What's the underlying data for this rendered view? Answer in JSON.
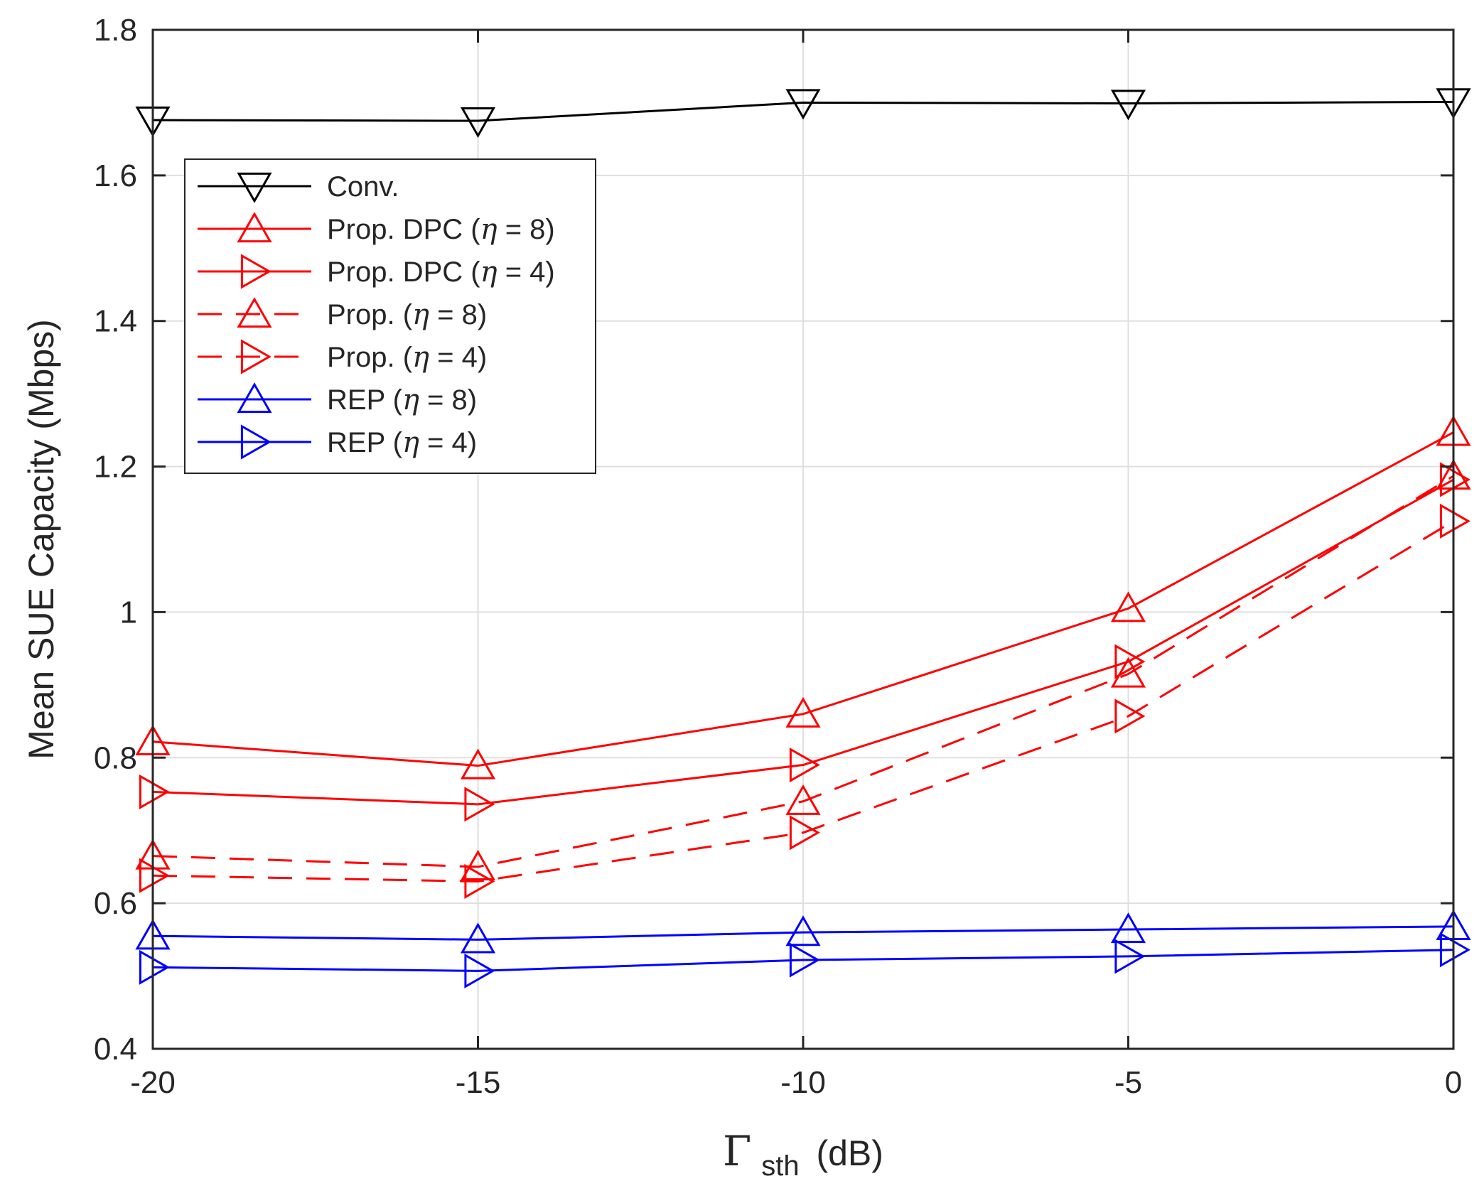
{
  "chart_data": {
    "type": "line",
    "title": "",
    "xlabel": {
      "symbol": "Γ",
      "subscript": "sth",
      "unit": "(dB)"
    },
    "ylabel": "Mean SUE Capacity (Mbps)",
    "x": [
      -20,
      -15,
      -10,
      -5,
      0
    ],
    "xlim": [
      -20,
      0
    ],
    "ylim": [
      0.4,
      1.8
    ],
    "xticks": [
      -20,
      -15,
      -10,
      -5,
      0
    ],
    "xtick_labels": [
      "-20",
      "-15",
      "-10",
      "-5",
      "0"
    ],
    "yticks": [
      0.4,
      0.6,
      0.8,
      1.0,
      1.2,
      1.4,
      1.6,
      1.8
    ],
    "ytick_labels": [
      "0.4",
      "0.6",
      "0.8",
      "1",
      "1.2",
      "1.4",
      "1.6",
      "1.8"
    ],
    "grid": true,
    "legend_position": "top-left",
    "series": [
      {
        "name": "Conv.",
        "legend_prefix": "Conv.",
        "legend_eta": "",
        "color": "#000000",
        "dash": "solid",
        "marker": "triangle-down",
        "values": [
          1.676,
          1.675,
          1.7,
          1.699,
          1.701
        ]
      },
      {
        "name": "Prop. DPC (η = 8)",
        "legend_prefix": "Prop. DPC (",
        "legend_eta": "η = 8)",
        "color": "#ff0000",
        "dash": "solid",
        "marker": "triangle-up",
        "values": [
          0.822,
          0.789,
          0.86,
          1.005,
          1.247
        ]
      },
      {
        "name": "Prop. DPC (η = 4)",
        "legend_prefix": "Prop. DPC (",
        "legend_eta": "η = 4)",
        "color": "#ff0000",
        "dash": "solid",
        "marker": "triangle-right",
        "values": [
          0.753,
          0.736,
          0.79,
          0.932,
          1.182
        ]
      },
      {
        "name": "Prop. (η = 8)",
        "legend_prefix": "Prop. (",
        "legend_eta": "η = 8)",
        "color": "#ff0000",
        "dash": "dashed",
        "marker": "triangle-up",
        "values": [
          0.665,
          0.65,
          0.74,
          0.915,
          1.187
        ]
      },
      {
        "name": "Prop. (η = 4)",
        "legend_prefix": "Prop. (",
        "legend_eta": "η = 4)",
        "color": "#ff0000",
        "dash": "dashed",
        "marker": "triangle-right",
        "values": [
          0.638,
          0.63,
          0.697,
          0.857,
          1.125
        ]
      },
      {
        "name": "REP (η = 8)",
        "legend_prefix": "REP (",
        "legend_eta": "η = 8)",
        "color": "#0000ff",
        "dash": "solid",
        "marker": "triangle-up",
        "values": [
          0.555,
          0.55,
          0.56,
          0.564,
          0.568
        ]
      },
      {
        "name": "REP (η = 4)",
        "legend_prefix": "REP (",
        "legend_eta": "η = 4)",
        "color": "#0000ff",
        "dash": "solid",
        "marker": "triangle-right",
        "values": [
          0.512,
          0.507,
          0.522,
          0.527,
          0.536
        ]
      }
    ]
  }
}
